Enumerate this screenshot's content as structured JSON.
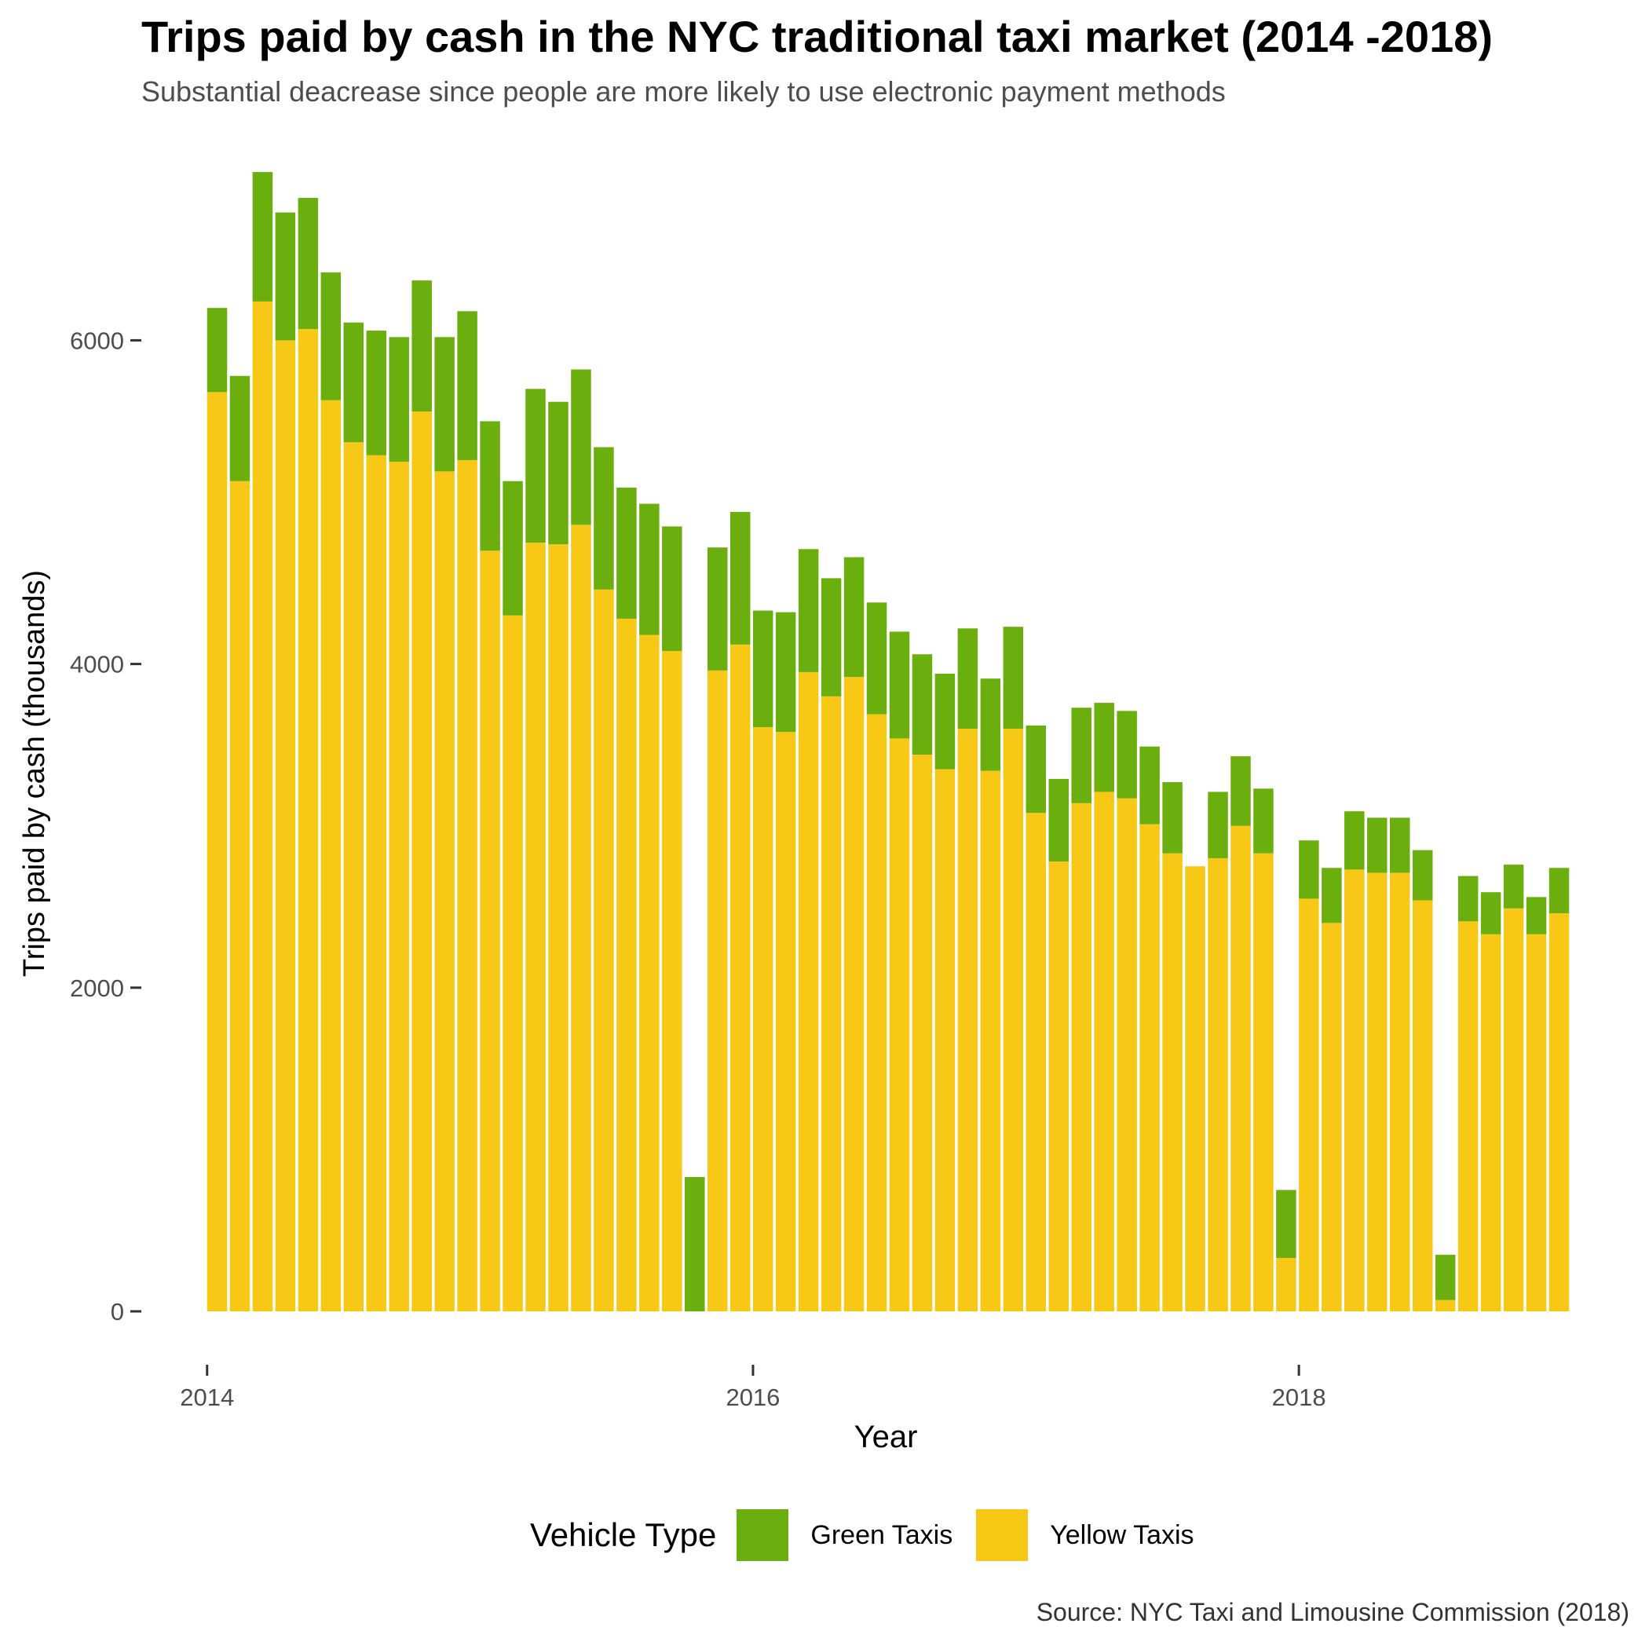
{
  "title": "Trips paid by cash in the NYC traditional taxi market (2014 -2018)",
  "subtitle": "Substantial deacrease since people are more likely to use electronic payment methods",
  "caption": "Source: NYC Taxi and Limousine Commission (2018)",
  "legend": {
    "title": "Vehicle Type",
    "items": [
      {
        "label": "Green Taxis",
        "color": "#6aaf0e"
      },
      {
        "label": "Yellow Taxis",
        "color": "#f7c815"
      }
    ]
  },
  "chart_data": {
    "type": "bar",
    "stacked": true,
    "xlabel": "Year",
    "ylabel": "Trips paid by cash (thousands)",
    "x_ticks": [
      {
        "value": "2014-01",
        "label": "2014"
      },
      {
        "value": "2016-01",
        "label": "2016"
      },
      {
        "value": "2018-01",
        "label": "2018"
      }
    ],
    "y_ticks": [
      0,
      2000,
      4000,
      6000
    ],
    "ylim": [
      0,
      7050
    ],
    "grid": false,
    "legend_position": "bottom",
    "categories": [
      "2014-01",
      "2014-02",
      "2014-03",
      "2014-04",
      "2014-05",
      "2014-06",
      "2014-07",
      "2014-08",
      "2014-09",
      "2014-10",
      "2014-11",
      "2014-12",
      "2015-01",
      "2015-02",
      "2015-03",
      "2015-04",
      "2015-05",
      "2015-06",
      "2015-07",
      "2015-08",
      "2015-09",
      "2015-10",
      "2015-11",
      "2015-12",
      "2016-01",
      "2016-02",
      "2016-03",
      "2016-04",
      "2016-05",
      "2016-06",
      "2016-07",
      "2016-08",
      "2016-09",
      "2016-10",
      "2016-11",
      "2016-12",
      "2017-01",
      "2017-02",
      "2017-03",
      "2017-04",
      "2017-05",
      "2017-06",
      "2017-07",
      "2017-08",
      "2017-09",
      "2017-10",
      "2017-11",
      "2017-12",
      "2018-01",
      "2018-02",
      "2018-03",
      "2018-04",
      "2018-05",
      "2018-06",
      "2018-07",
      "2018-08",
      "2018-09",
      "2018-10",
      "2018-11",
      "2018-12"
    ],
    "series": [
      {
        "name": "Yellow Taxis",
        "color": "#f7c815",
        "values": [
          5680,
          5130,
          6240,
          6000,
          6070,
          5630,
          5370,
          5290,
          5250,
          5560,
          5190,
          5260,
          4700,
          4300,
          4750,
          4740,
          4860,
          4460,
          4280,
          4180,
          4080,
          0,
          3960,
          4120,
          3610,
          3580,
          3950,
          3800,
          3920,
          3690,
          3540,
          3440,
          3350,
          3600,
          3340,
          3600,
          3080,
          2780,
          3140,
          3210,
          3170,
          3010,
          2830,
          2750,
          2800,
          3000,
          2830,
          330,
          2550,
          2400,
          2730,
          2710,
          2710,
          2540,
          70,
          2410,
          2330,
          2490,
          2330,
          2460
        ]
      },
      {
        "name": "Green Taxis",
        "color": "#6aaf0e",
        "values": [
          520,
          650,
          800,
          790,
          810,
          790,
          740,
          770,
          770,
          810,
          830,
          920,
          800,
          830,
          950,
          880,
          960,
          880,
          810,
          810,
          770,
          830,
          760,
          820,
          720,
          740,
          760,
          730,
          740,
          690,
          660,
          620,
          590,
          620,
          570,
          630,
          540,
          510,
          590,
          550,
          540,
          480,
          440,
          0,
          410,
          430,
          400,
          420,
          360,
          340,
          360,
          340,
          340,
          310,
          280,
          280,
          260,
          270,
          230,
          280
        ]
      }
    ]
  }
}
